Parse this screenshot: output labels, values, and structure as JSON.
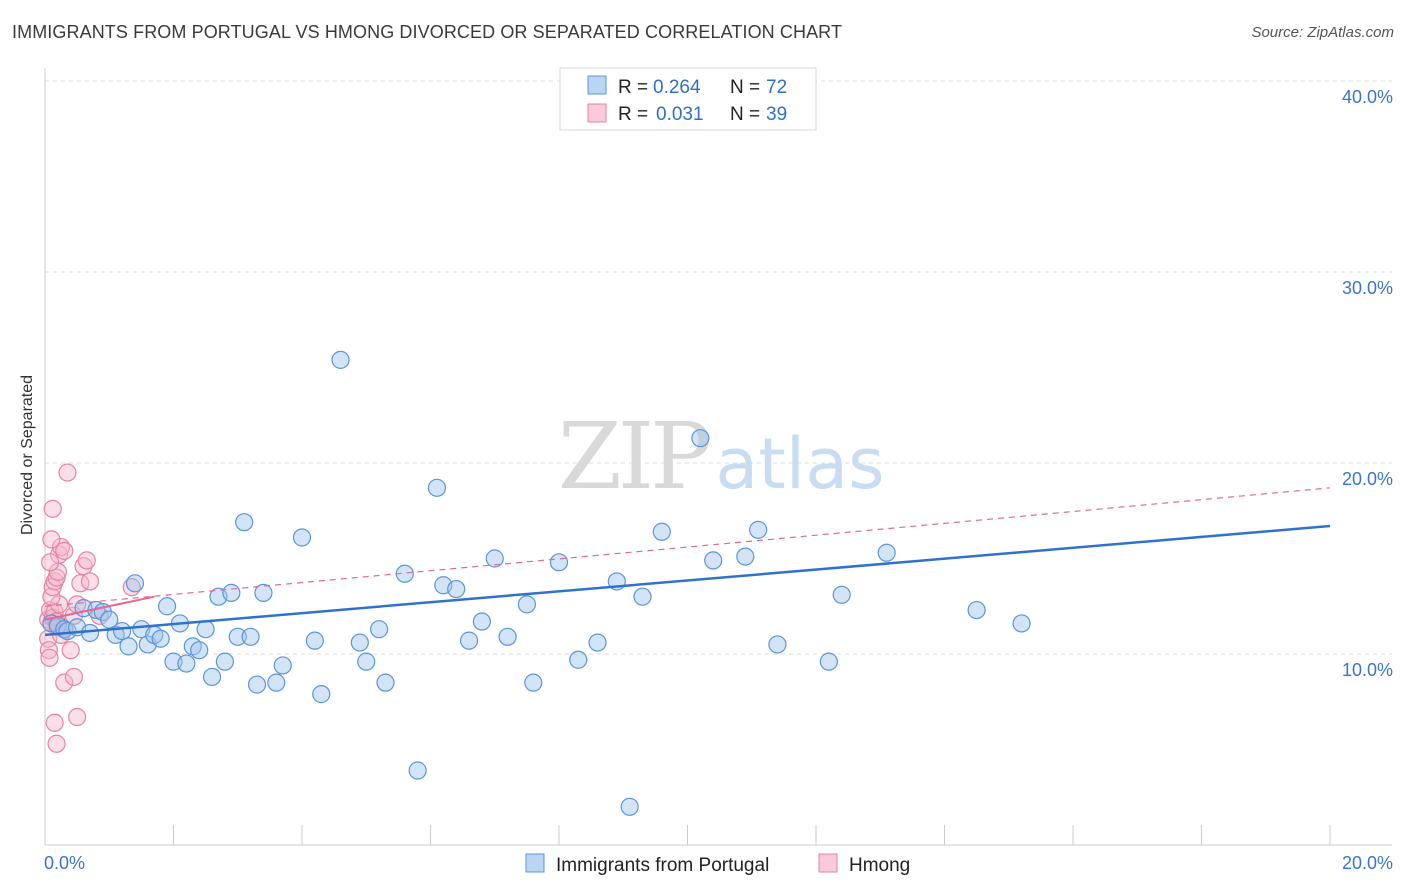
{
  "title": "IMMIGRANTS FROM PORTUGAL VS HMONG DIVORCED OR SEPARATED CORRELATION CHART",
  "source": "Source: ZipAtlas.com",
  "watermark": {
    "zip": "ZIP",
    "atlas": "atlas"
  },
  "colors": {
    "blue": "#9fc3ee",
    "blue_stroke": "#5b95d8",
    "blue_line": "#2f72cc",
    "pink": "#f6b7cb",
    "pink_stroke": "#e683a5",
    "pink_line": "#e06a93",
    "tick": "#3b74c7",
    "grid": "#dddddd"
  },
  "legend": {
    "rows": [
      {
        "r_label": "R =",
        "r_value": "0.264",
        "n_label": "N =",
        "n_value": "72"
      },
      {
        "r_label": "R =",
        "r_value": "0.031",
        "n_label": "N =",
        "n_value": "39"
      }
    ]
  },
  "chart_data": {
    "type": "scatter",
    "title": "IMMIGRANTS FROM PORTUGAL VS HMONG DIVORCED OR SEPARATED CORRELATION CHART",
    "xlabel": "",
    "ylabel": "Divorced or Separated",
    "xlim": [
      0,
      20
    ],
    "ylim": [
      0,
      40
    ],
    "x_ticks": [
      "0.0%",
      "20.0%"
    ],
    "y_ticks": [
      {
        "value": 10,
        "label": "10.0%"
      },
      {
        "value": 20,
        "label": "20.0%"
      },
      {
        "value": 30,
        "label": "30.0%"
      },
      {
        "value": 40,
        "label": "40.0%"
      }
    ],
    "grid": true,
    "legend_position": "top-center",
    "series": [
      {
        "name": "Immigrants from Portugal",
        "color": "blue",
        "trend": {
          "x0": 0.0,
          "y0": 11.0,
          "x1": 20.0,
          "y1": 16.7,
          "style": "solid"
        },
        "points": [
          [
            0.1,
            11.6
          ],
          [
            0.2,
            11.5
          ],
          [
            0.3,
            11.3
          ],
          [
            0.35,
            11.2
          ],
          [
            0.5,
            11.4
          ],
          [
            0.6,
            12.4
          ],
          [
            0.7,
            11.1
          ],
          [
            0.8,
            12.3
          ],
          [
            0.9,
            12.2
          ],
          [
            1.0,
            11.8
          ],
          [
            1.1,
            11.0
          ],
          [
            1.2,
            11.2
          ],
          [
            1.3,
            10.4
          ],
          [
            1.4,
            13.7
          ],
          [
            1.5,
            11.3
          ],
          [
            1.6,
            10.5
          ],
          [
            1.7,
            11.0
          ],
          [
            1.8,
            10.8
          ],
          [
            1.9,
            12.5
          ],
          [
            2.0,
            9.6
          ],
          [
            2.1,
            11.6
          ],
          [
            2.2,
            9.5
          ],
          [
            2.3,
            10.4
          ],
          [
            2.4,
            10.2
          ],
          [
            2.5,
            11.3
          ],
          [
            2.6,
            8.8
          ],
          [
            2.7,
            13.0
          ],
          [
            2.8,
            9.6
          ],
          [
            2.9,
            13.2
          ],
          [
            3.0,
            10.9
          ],
          [
            3.1,
            16.9
          ],
          [
            3.2,
            10.9
          ],
          [
            3.3,
            8.4
          ],
          [
            3.4,
            13.2
          ],
          [
            3.6,
            8.5
          ],
          [
            3.7,
            9.4
          ],
          [
            4.0,
            16.1
          ],
          [
            4.2,
            10.7
          ],
          [
            4.3,
            7.9
          ],
          [
            4.6,
            25.4
          ],
          [
            4.9,
            10.6
          ],
          [
            5.0,
            9.6
          ],
          [
            5.2,
            11.3
          ],
          [
            5.3,
            8.5
          ],
          [
            5.6,
            14.2
          ],
          [
            5.8,
            3.9
          ],
          [
            6.1,
            18.7
          ],
          [
            6.2,
            13.6
          ],
          [
            6.4,
            13.4
          ],
          [
            6.6,
            10.7
          ],
          [
            6.8,
            11.7
          ],
          [
            7.0,
            15.0
          ],
          [
            7.2,
            10.9
          ],
          [
            7.5,
            12.6
          ],
          [
            7.6,
            8.5
          ],
          [
            8.0,
            14.8
          ],
          [
            8.3,
            9.7
          ],
          [
            8.6,
            10.6
          ],
          [
            8.9,
            13.8
          ],
          [
            9.1,
            2.0
          ],
          [
            9.3,
            13.0
          ],
          [
            9.6,
            16.4
          ],
          [
            10.2,
            21.3
          ],
          [
            10.4,
            14.9
          ],
          [
            10.9,
            15.1
          ],
          [
            11.1,
            16.5
          ],
          [
            11.4,
            10.5
          ],
          [
            12.2,
            9.6
          ],
          [
            12.4,
            13.1
          ],
          [
            13.1,
            15.3
          ],
          [
            14.5,
            12.3
          ],
          [
            15.2,
            11.6
          ]
        ]
      },
      {
        "name": "Hmong",
        "color": "pink",
        "trend_solid": {
          "x0": 0.0,
          "y0": 11.8,
          "x1": 1.7,
          "y1": 13.0,
          "style": "solid"
        },
        "trend": {
          "x0": 0.0,
          "y0": 12.5,
          "x1": 20.0,
          "y1": 18.7,
          "style": "dashed"
        },
        "points": [
          [
            0.05,
            11.8
          ],
          [
            0.08,
            12.3
          ],
          [
            0.1,
            11.6
          ],
          [
            0.12,
            11.9
          ],
          [
            0.15,
            12.2
          ],
          [
            0.18,
            11.7
          ],
          [
            0.2,
            11.4
          ],
          [
            0.22,
            12.6
          ],
          [
            0.05,
            10.8
          ],
          [
            0.06,
            10.2
          ],
          [
            0.07,
            9.8
          ],
          [
            0.1,
            13.0
          ],
          [
            0.12,
            13.5
          ],
          [
            0.15,
            13.8
          ],
          [
            0.18,
            14.0
          ],
          [
            0.2,
            14.3
          ],
          [
            0.22,
            15.2
          ],
          [
            0.25,
            15.6
          ],
          [
            0.3,
            15.4
          ],
          [
            0.1,
            16.0
          ],
          [
            0.12,
            17.6
          ],
          [
            0.35,
            19.5
          ],
          [
            0.15,
            6.4
          ],
          [
            0.18,
            5.3
          ],
          [
            0.3,
            8.5
          ],
          [
            0.45,
            8.8
          ],
          [
            0.5,
            6.7
          ],
          [
            0.4,
            10.2
          ],
          [
            0.45,
            12.0
          ],
          [
            0.5,
            12.6
          ],
          [
            0.55,
            13.7
          ],
          [
            0.6,
            14.6
          ],
          [
            0.65,
            14.9
          ],
          [
            0.7,
            13.8
          ],
          [
            0.85,
            12.0
          ],
          [
            1.35,
            13.5
          ],
          [
            0.25,
            11.0
          ],
          [
            0.3,
            11.3
          ],
          [
            0.08,
            14.8
          ]
        ]
      }
    ]
  }
}
